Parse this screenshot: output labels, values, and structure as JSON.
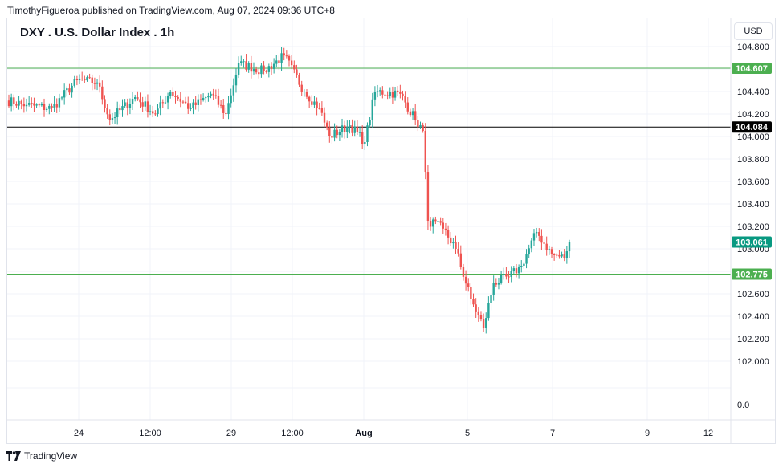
{
  "header": {
    "published_by": "TimothyFigueroa published on TradingView.com, Aug 07, 2024 09:36 UTC+8"
  },
  "symbol_title": "DXY . U.S. Dollar Index . 1h",
  "currency_button": "USD",
  "footer": {
    "brand": "TradingView",
    "logo_icon": "tradingview-logo-icon"
  },
  "colors": {
    "up": "#26a69a",
    "down": "#ef5350",
    "level_green": "#4caf50",
    "level_black": "#000000",
    "last_price": "#089981"
  },
  "chart_data": {
    "type": "candlestick",
    "ylim": [
      101.8,
      104.9
    ],
    "y_ticks": [
      "104.800",
      "104.600",
      "104.400",
      "104.200",
      "104.000",
      "103.800",
      "103.600",
      "103.400",
      "103.200",
      "103.000",
      "102.800",
      "102.600",
      "102.400",
      "102.200",
      "102.000"
    ],
    "extra_y_tick": "0.0",
    "x_ticks": [
      "24",
      "12:00",
      "29",
      "12:00",
      "Aug",
      "5",
      "7",
      "9",
      "12"
    ],
    "horizontal_levels": [
      {
        "value": 104.607,
        "label": "104.607",
        "color": "#4caf50"
      },
      {
        "value": 104.084,
        "label": "104.084",
        "color": "#000000"
      },
      {
        "value": 102.775,
        "label": "102.775",
        "color": "#4caf50"
      }
    ],
    "last_price": {
      "value": 103.061,
      "label": "103.061"
    },
    "segments": [
      {
        "from": 104.32,
        "to": 104.28,
        "n": 8
      },
      {
        "from": 104.28,
        "to": 104.25,
        "n": 10
      },
      {
        "from": 104.25,
        "to": 104.5,
        "n": 10
      },
      {
        "from": 104.5,
        "to": 104.48,
        "n": 8
      },
      {
        "from": 104.48,
        "to": 104.15,
        "n": 5
      },
      {
        "from": 104.15,
        "to": 104.35,
        "n": 10
      },
      {
        "from": 104.35,
        "to": 104.2,
        "n": 8
      },
      {
        "from": 104.2,
        "to": 104.4,
        "n": 6
      },
      {
        "from": 104.4,
        "to": 104.25,
        "n": 8
      },
      {
        "from": 104.25,
        "to": 104.38,
        "n": 8
      },
      {
        "from": 104.38,
        "to": 104.2,
        "n": 6
      },
      {
        "from": 104.2,
        "to": 104.65,
        "n": 5
      },
      {
        "from": 104.65,
        "to": 104.58,
        "n": 10
      },
      {
        "from": 104.58,
        "to": 104.72,
        "n": 8
      },
      {
        "from": 104.72,
        "to": 104.4,
        "n": 8
      },
      {
        "from": 104.4,
        "to": 104.25,
        "n": 6
      },
      {
        "from": 104.25,
        "to": 104.0,
        "n": 4
      },
      {
        "from": 104.0,
        "to": 104.1,
        "n": 8
      },
      {
        "from": 104.1,
        "to": 103.95,
        "n": 6
      },
      {
        "from": 103.95,
        "to": 104.4,
        "n": 4
      },
      {
        "from": 104.4,
        "to": 104.38,
        "n": 10
      },
      {
        "from": 104.38,
        "to": 104.15,
        "n": 6
      },
      {
        "from": 104.15,
        "to": 104.05,
        "n": 3
      },
      {
        "from": 104.05,
        "to": 103.25,
        "n": 2
      },
      {
        "from": 103.25,
        "to": 103.18,
        "n": 6
      },
      {
        "from": 103.18,
        "to": 103.0,
        "n": 5
      },
      {
        "from": 103.0,
        "to": 102.55,
        "n": 6
      },
      {
        "from": 102.55,
        "to": 102.3,
        "n": 5
      },
      {
        "from": 102.3,
        "to": 102.7,
        "n": 4
      },
      {
        "from": 102.7,
        "to": 102.75,
        "n": 6
      },
      {
        "from": 102.75,
        "to": 102.85,
        "n": 5
      },
      {
        "from": 102.85,
        "to": 103.15,
        "n": 6
      },
      {
        "from": 103.15,
        "to": 102.95,
        "n": 6
      },
      {
        "from": 102.95,
        "to": 102.92,
        "n": 5
      },
      {
        "from": 102.92,
        "to": 103.061,
        "n": 2
      }
    ]
  }
}
